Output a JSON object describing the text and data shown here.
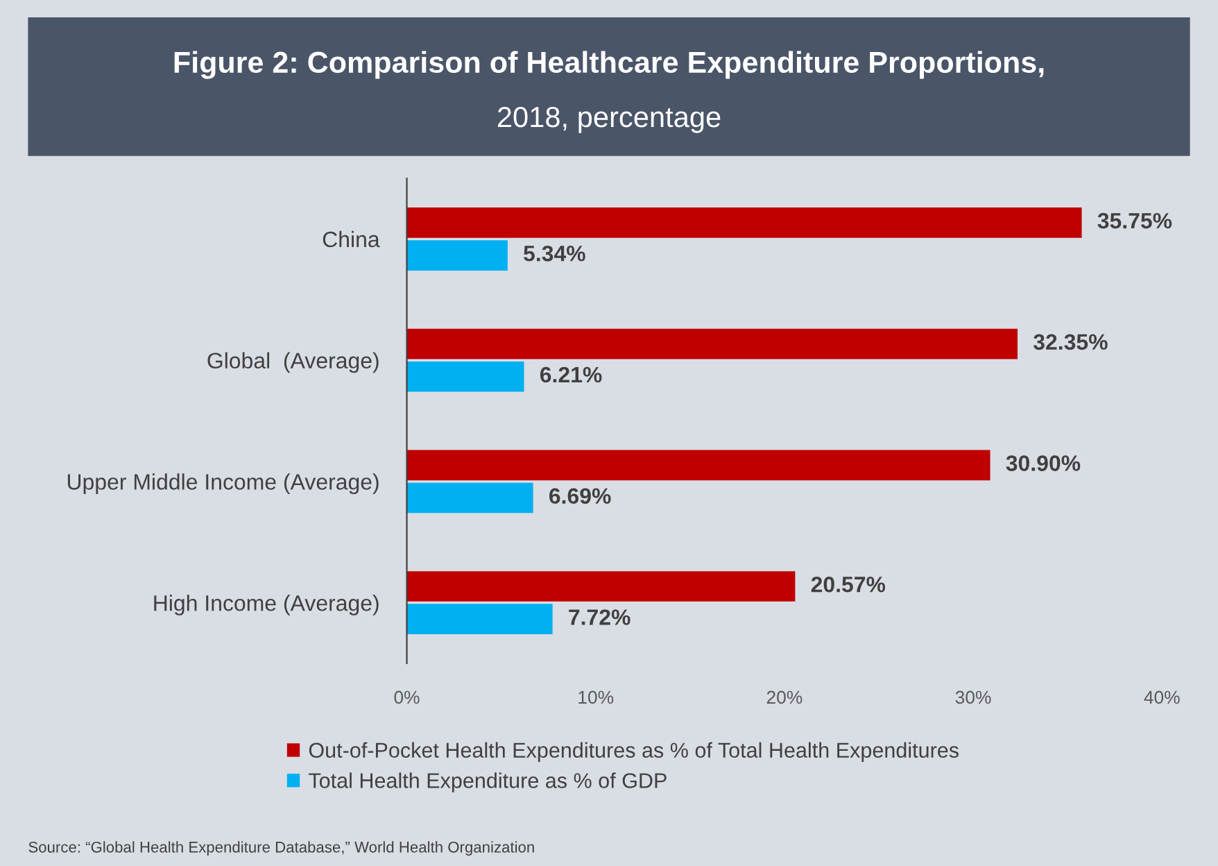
{
  "chart_data": {
    "type": "bar",
    "orientation": "horizontal",
    "title": "Figure 2: Comparison of Healthcare Expenditure Proportions,",
    "subtitle": "2018, percentage",
    "categories": [
      "China",
      "Global  (Average)",
      "Upper Middle Income (Average)",
      "High Income (Average)"
    ],
    "series": [
      {
        "name": "Out-of-Pocket Health Expenditures as % of Total Health Expenditures",
        "color": "#c00000",
        "values": [
          35.75,
          32.35,
          30.9,
          20.57
        ],
        "value_labels": [
          "35.75%",
          "32.35%",
          "30.90%",
          "20.57%"
        ]
      },
      {
        "name": "Total Health Expenditure as % of GDP",
        "color": "#00b0f0",
        "values": [
          5.34,
          6.21,
          6.69,
          7.72
        ],
        "value_labels": [
          "5.34%",
          "6.21%",
          "6.69%",
          "7.72%"
        ]
      }
    ],
    "xlim": [
      0,
      40
    ],
    "xticks": [
      {
        "value": 0,
        "label": "0%"
      },
      {
        "value": 10,
        "label": "10%"
      },
      {
        "value": 20,
        "label": "20%"
      },
      {
        "value": 30,
        "label": "30%"
      },
      {
        "value": 40,
        "label": "40%"
      }
    ],
    "grid": false,
    "legend": "bottom",
    "annotations": [
      "Source: “Global Health Expenditure Database,” World Health Organization"
    ]
  }
}
